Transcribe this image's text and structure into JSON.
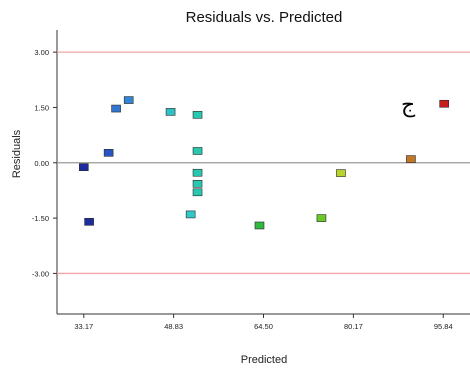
{
  "chart_data": {
    "type": "scatter",
    "title": "Residuals vs. Predicted",
    "xlabel": "Predicted",
    "ylabel": "Residuals",
    "x_ticks": [
      "33.17",
      "48.83",
      "64.50",
      "80.17",
      "95.84"
    ],
    "y_ticks": [
      "3.00",
      "1.50",
      "0.00",
      "-1.50",
      "-3.00"
    ],
    "xlim": [
      28.5,
      100.5
    ],
    "ylim": [
      -4.1,
      3.6
    ],
    "grid": false,
    "reference_lines": [
      {
        "y": 3.0,
        "color": "#f2a6a6"
      },
      {
        "y": 0.0,
        "color": "#999999"
      },
      {
        "y": -3.0,
        "color": "#f2a6a6"
      }
    ],
    "annotation": {
      "text": "ج",
      "x": 89.7,
      "y": 1.6
    },
    "points": [
      {
        "x": 33.17,
        "y": -0.12,
        "color": "#1d2e9c"
      },
      {
        "x": 34.1,
        "y": -1.6,
        "color": "#1d2e9c"
      },
      {
        "x": 37.5,
        "y": 0.27,
        "color": "#2a54c4"
      },
      {
        "x": 38.8,
        "y": 1.47,
        "color": "#3375d0"
      },
      {
        "x": 41.0,
        "y": 1.7,
        "color": "#3385d6"
      },
      {
        "x": 48.3,
        "y": 1.38,
        "color": "#30c0c6"
      },
      {
        "x": 51.8,
        "y": -1.4,
        "color": "#30c8c8"
      },
      {
        "x": 53.0,
        "y": 1.3,
        "color": "#28c8b0"
      },
      {
        "x": 53.0,
        "y": 0.32,
        "color": "#28c8b0"
      },
      {
        "x": 53.0,
        "y": -0.27,
        "color": "#28c8b0"
      },
      {
        "x": 53.0,
        "y": -0.57,
        "color": "#28c8b0"
      },
      {
        "x": 53.0,
        "y": -0.8,
        "color": "#28c8b0"
      },
      {
        "x": 63.8,
        "y": -1.7,
        "color": "#30b840"
      },
      {
        "x": 74.6,
        "y": -1.5,
        "color": "#6cc828"
      },
      {
        "x": 78.0,
        "y": -0.28,
        "color": "#b8d428"
      },
      {
        "x": 90.2,
        "y": 0.1,
        "color": "#c07828"
      },
      {
        "x": 96.0,
        "y": 1.6,
        "color": "#c81e1e"
      }
    ]
  }
}
